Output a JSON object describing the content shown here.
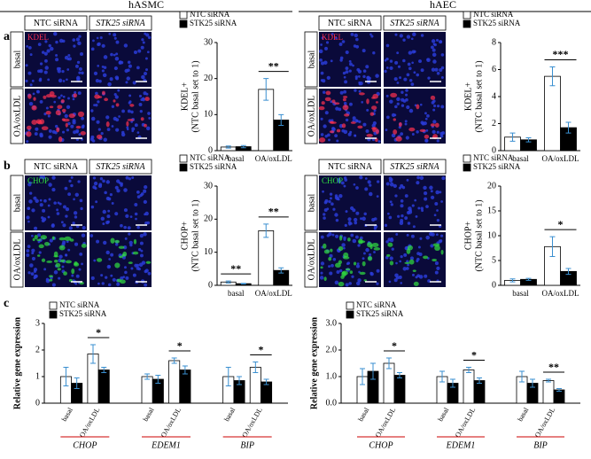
{
  "header": {
    "left": "hASMC",
    "right": "hAEC"
  },
  "panels": [
    "a",
    "b",
    "c"
  ],
  "micrographs": [
    {
      "stain": "KDEL",
      "stain_color": "#ff3050",
      "columns": [
        "NTC siRNA",
        "STK25 siRNA"
      ],
      "rows": [
        "basal",
        "OA/oxLDL"
      ]
    },
    {
      "stain": "KDEL",
      "stain_color": "#ff3050",
      "columns": [
        "NTC siRNA",
        "STK25 siRNA"
      ],
      "rows": [
        "basal",
        "OA/oxLDL"
      ]
    },
    {
      "stain": "CHOP",
      "stain_color": "#30e040",
      "columns": [
        "NTC siRNA",
        "STK25 siRNA"
      ],
      "rows": [
        "basal",
        "OA/oxLDL"
      ]
    },
    {
      "stain": "CHOP",
      "stain_color": "#30e040",
      "columns": [
        "NTC siRNA",
        "STK25 siRNA"
      ],
      "rows": [
        "basal",
        "OA/oxLDL"
      ]
    }
  ],
  "chart_data": [
    {
      "type": "bar",
      "ylabel": "KDEL+",
      "ylabel_note": "(NTC basal set to 1)",
      "categories": [
        "basal",
        "OA/oxLDL"
      ],
      "significance": [
        null,
        "**"
      ],
      "legend": "upper right",
      "series": [
        {
          "name": "NTC siRNA",
          "color": "#ffffff",
          "values": [
            1,
            17
          ],
          "errors": [
            0.3,
            3
          ]
        },
        {
          "name": "STK25 siRNA",
          "color": "#000000",
          "values": [
            1.1,
            8.5
          ],
          "errors": [
            0.3,
            1.5
          ]
        }
      ],
      "ylim": [
        0,
        30
      ],
      "yticks": [
        0,
        10,
        20,
        30
      ]
    },
    {
      "type": "bar",
      "ylabel": "KDEL+",
      "ylabel_note": "(NTC basal set to 1)",
      "categories": [
        "basal",
        "OA/oxLDL"
      ],
      "significance": [
        null,
        "***"
      ],
      "legend": "upper right",
      "series": [
        {
          "name": "NTC siRNA",
          "color": "#ffffff",
          "values": [
            1,
            5.5
          ],
          "errors": [
            0.3,
            0.7
          ]
        },
        {
          "name": "STK25 siRNA",
          "color": "#000000",
          "values": [
            0.8,
            1.7
          ],
          "errors": [
            0.15,
            0.4
          ]
        }
      ],
      "ylim": [
        0,
        8
      ],
      "yticks": [
        0,
        2,
        4,
        6,
        8
      ]
    },
    {
      "type": "bar",
      "ylabel": "CHOP+",
      "ylabel_note": "(NTC basal set to 1)",
      "categories": [
        "basal",
        "OA/oxLDL"
      ],
      "significance": [
        "**",
        "**"
      ],
      "legend": "upper right",
      "series": [
        {
          "name": "NTC siRNA",
          "color": "#ffffff",
          "values": [
            1,
            16.5
          ],
          "errors": [
            0.3,
            2
          ]
        },
        {
          "name": "STK25 siRNA",
          "color": "#000000",
          "values": [
            0.5,
            4.5
          ],
          "errors": [
            0.1,
            0.8
          ]
        }
      ],
      "ylim": [
        0,
        30
      ],
      "yticks": [
        0,
        10,
        20,
        30
      ]
    },
    {
      "type": "bar",
      "ylabel": "CHOP+",
      "ylabel_note": "(NTC basal set to 1)",
      "categories": [
        "basal",
        "OA/oxLDL"
      ],
      "significance": [
        null,
        "*"
      ],
      "legend": "upper right",
      "series": [
        {
          "name": "NTC siRNA",
          "color": "#ffffff",
          "values": [
            1,
            7.8
          ],
          "errors": [
            0.3,
            2
          ]
        },
        {
          "name": "STK25 siRNA",
          "color": "#000000",
          "values": [
            1.2,
            2.8
          ],
          "errors": [
            0.2,
            0.6
          ]
        }
      ],
      "ylim": [
        0,
        20
      ],
      "yticks": [
        0,
        5,
        10,
        15,
        20
      ]
    },
    {
      "type": "bar",
      "ylabel": "Relative gene expression",
      "groups": [
        "CHOP",
        "EDEM1",
        "BIP"
      ],
      "categories": [
        "basal",
        "OA/oxLDL",
        "basal",
        "OA/oxLDL",
        "basal",
        "OA/oxLDL"
      ],
      "significance": [
        null,
        "*",
        null,
        "*",
        null,
        "*"
      ],
      "legend": "upper left",
      "series": [
        {
          "name": "NTC siRNA",
          "color": "#ffffff",
          "values": [
            1.0,
            1.85,
            1.0,
            1.6,
            1.0,
            1.35
          ],
          "errors": [
            0.35,
            0.35,
            0.1,
            0.1,
            0.35,
            0.2
          ]
        },
        {
          "name": "STK25 siRNA",
          "color": "#000000",
          "values": [
            0.75,
            1.25,
            0.9,
            1.25,
            0.85,
            0.8
          ],
          "errors": [
            0.2,
            0.1,
            0.15,
            0.15,
            0.15,
            0.1
          ]
        }
      ],
      "ylim": [
        0,
        3
      ],
      "yticks": [
        0,
        1,
        2,
        3
      ]
    },
    {
      "type": "bar",
      "ylabel": "Relative gene expression",
      "groups": [
        "CHOP",
        "EDEM1",
        "BIP"
      ],
      "categories": [
        "basal",
        "OA/oxLDL",
        "basal",
        "OA/oxLDL",
        "basal",
        "OA/oxLDL"
      ],
      "significance": [
        null,
        "*",
        null,
        "*",
        null,
        "**"
      ],
      "legend": "upper left",
      "series": [
        {
          "name": "NTC siRNA",
          "color": "#ffffff",
          "values": [
            1.0,
            1.5,
            1.0,
            1.25,
            1.0,
            0.85
          ],
          "errors": [
            0.3,
            0.2,
            0.2,
            0.1,
            0.2,
            0.05
          ]
        },
        {
          "name": "STK25 siRNA",
          "color": "#000000",
          "values": [
            1.2,
            1.05,
            0.75,
            0.85,
            0.75,
            0.5
          ],
          "errors": [
            0.3,
            0.1,
            0.15,
            0.1,
            0.15,
            0.05
          ]
        }
      ],
      "ylim": [
        0,
        3
      ],
      "yticks": [
        {
          "value": 0,
          "label": "0.0"
        },
        {
          "value": 1,
          "label": "1.0"
        },
        {
          "value": 2,
          "label": "2.0"
        },
        {
          "value": 3,
          "label": "3.0"
        }
      ]
    }
  ]
}
